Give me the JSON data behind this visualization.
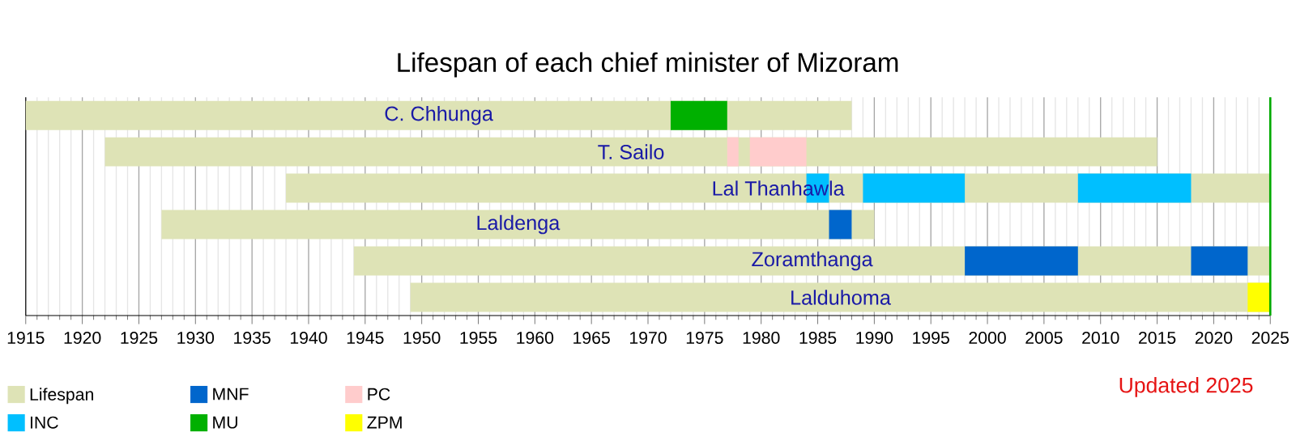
{
  "chart_data": {
    "type": "bar",
    "orientation": "horizontal",
    "title": "Lifespan of each chief minister of Mizoram",
    "categories": [
      "C. Chhunga",
      "T. Sailo",
      "Lal Thanhawla",
      "Laldenga",
      "Zoramthanga",
      "Lalduhoma"
    ],
    "series": [
      {
        "name": "Lifespan",
        "color": "#dee3b6",
        "base": [
          1915,
          1922,
          1938,
          1927,
          1944,
          1949
        ],
        "values": [
          73,
          93,
          87,
          63,
          81,
          76
        ]
      },
      {
        "name": "MNF",
        "color": "#0066cc",
        "base": [
          null,
          null,
          null,
          1986,
          1998,
          null
        ],
        "values": [
          null,
          null,
          null,
          2,
          10,
          null
        ]
      },
      {
        "name": "PC",
        "color": "#ffcccc",
        "base": [
          null,
          1977,
          null,
          null,
          null,
          null
        ],
        "values": [
          null,
          1,
          null,
          null,
          null,
          null
        ]
      },
      {
        "name": "INC",
        "color": "#00bfff",
        "base": [
          null,
          null,
          1984,
          null,
          null,
          null
        ],
        "values": [
          null,
          null,
          2,
          null,
          null,
          null
        ]
      },
      {
        "name": "MU",
        "color": "#00b000",
        "base": [
          1972,
          null,
          null,
          null,
          null,
          null
        ],
        "values": [
          5,
          null,
          null,
          null,
          null,
          null
        ]
      },
      {
        "name": "ZPM",
        "color": "#ffff00",
        "base": [
          null,
          null,
          null,
          null,
          null,
          2023
        ],
        "values": [
          null,
          null,
          null,
          null,
          null,
          2
        ]
      },
      {
        "color": "#0066cc",
        "base": [
          null,
          null,
          null,
          null,
          2018,
          null
        ],
        "values": [
          null,
          null,
          null,
          null,
          5,
          null
        ]
      },
      {
        "color": "#ffcccc",
        "base": [
          null,
          1979,
          null,
          null,
          null,
          null
        ],
        "values": [
          null,
          5,
          null,
          null,
          null,
          null
        ]
      },
      {
        "color": "#00bfff",
        "base": [
          null,
          null,
          1989,
          null,
          null,
          null
        ],
        "values": [
          null,
          null,
          9,
          null,
          null,
          null
        ]
      },
      {
        "color": "#00bfff",
        "base": [
          null,
          null,
          2008,
          null,
          null,
          null
        ],
        "values": [
          null,
          null,
          10,
          null,
          null,
          null
        ]
      }
    ],
    "xlim": [
      1915,
      2025
    ],
    "xticks": [
      1915,
      1920,
      1925,
      1930,
      1935,
      1940,
      1945,
      1950,
      1955,
      1960,
      1965,
      1970,
      1975,
      1980,
      1985,
      1990,
      1995,
      2000,
      2005,
      2010,
      2015,
      2020,
      2025
    ],
    "grid": "x",
    "legend": "bottom left",
    "ref_lines": [
      {
        "axis": "x",
        "value": 2025,
        "color": "#00aa00"
      }
    ],
    "annotations": [
      "Updated 2025"
    ]
  }
}
